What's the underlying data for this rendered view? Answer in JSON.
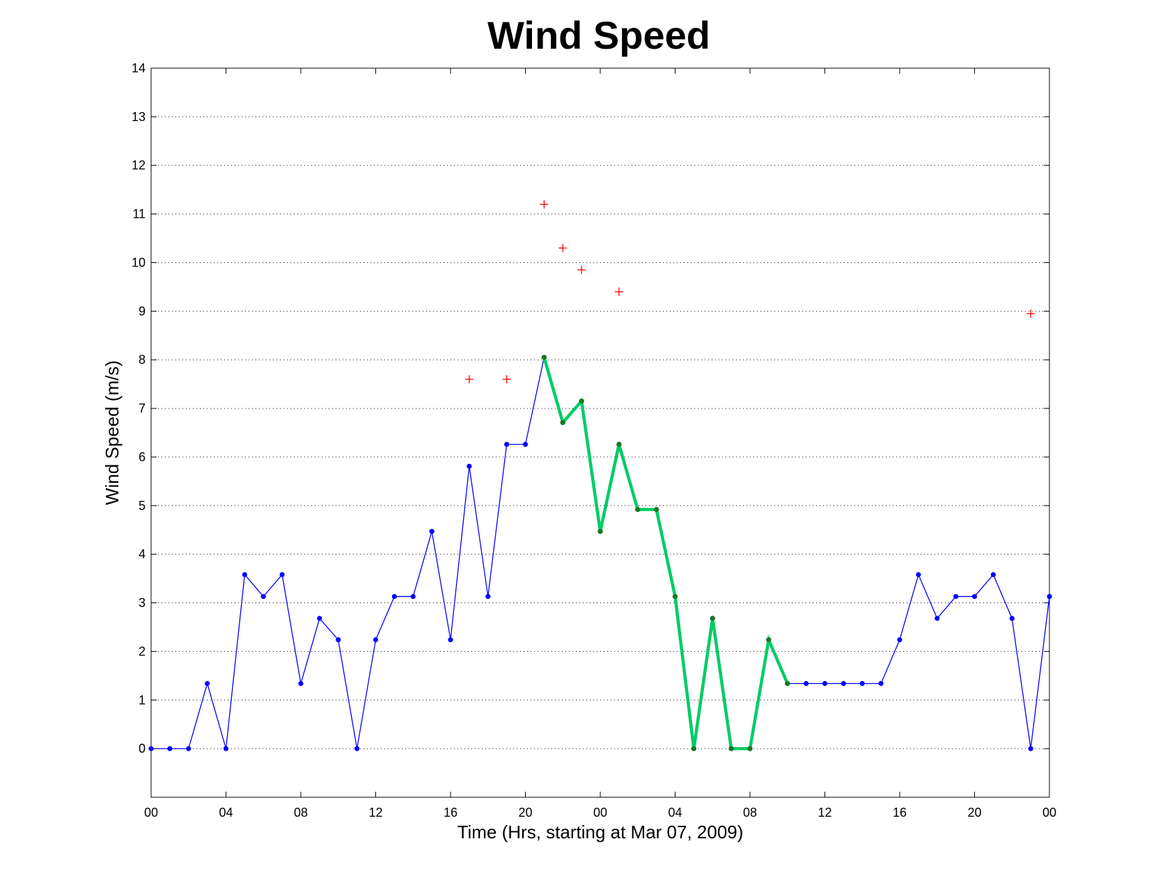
{
  "chart_data": {
    "type": "line",
    "title": "Wind Speed",
    "xlabel": "Time (Hrs, starting at Mar 07, 2009)",
    "ylabel": "Wind Speed (m/s)",
    "xlim": [
      0,
      48
    ],
    "ylim": [
      -1,
      14
    ],
    "x_ticks": [
      0,
      4,
      8,
      12,
      16,
      20,
      24,
      28,
      32,
      36,
      40,
      44,
      48
    ],
    "x_tick_labels": [
      "00",
      "04",
      "08",
      "12",
      "16",
      "20",
      "00",
      "04",
      "08",
      "12",
      "16",
      "20",
      "00"
    ],
    "y_ticks": [
      0,
      1,
      2,
      3,
      4,
      5,
      6,
      7,
      8,
      9,
      10,
      11,
      12,
      13,
      14
    ],
    "y_tick_labels": [
      "0",
      "1",
      "2",
      "3",
      "4",
      "5",
      "6",
      "7",
      "8",
      "9",
      "10",
      "11",
      "12",
      "13",
      "14"
    ],
    "grid": "horizontal dotted",
    "series": [
      {
        "style": "line-dots",
        "color": "#0000ff",
        "x": [
          0,
          1,
          2,
          3,
          4,
          5,
          6,
          7,
          8,
          9,
          10,
          11,
          12,
          13,
          14,
          15,
          16,
          17,
          18,
          19,
          20,
          21,
          22,
          23,
          24,
          25,
          26,
          27,
          28,
          29,
          30,
          31,
          32,
          33,
          34,
          35,
          36,
          37,
          38,
          39,
          40,
          41,
          42,
          43,
          44,
          45,
          46,
          47,
          48
        ],
        "y": [
          0,
          0,
          0,
          1.34,
          0,
          3.58,
          3.13,
          3.58,
          1.34,
          2.68,
          2.24,
          0,
          2.24,
          3.13,
          3.13,
          4.47,
          2.24,
          5.81,
          3.13,
          6.26,
          6.26,
          8.05,
          6.71,
          7.15,
          4.47,
          6.26,
          4.92,
          4.92,
          3.13,
          0,
          2.68,
          0,
          0,
          2.24,
          1.34,
          1.34,
          1.34,
          1.34,
          1.34,
          1.34,
          2.24,
          3.58,
          2.68,
          3.13,
          3.13,
          3.58,
          2.68,
          0,
          3.13
        ]
      },
      {
        "style": "thick-line-dots",
        "color": "#00cc66",
        "x": [
          21,
          22,
          23,
          24,
          25,
          26,
          27,
          28,
          29,
          30,
          31,
          32,
          33,
          34
        ],
        "y": [
          8.05,
          6.71,
          7.15,
          4.47,
          6.26,
          4.92,
          4.92,
          3.13,
          0,
          2.68,
          0,
          0,
          2.24,
          1.34
        ]
      },
      {
        "style": "plus-markers",
        "color": "#ff0000",
        "x": [
          17,
          19,
          21,
          22,
          23,
          25,
          47
        ],
        "y": [
          7.6,
          7.6,
          11.2,
          10.3,
          9.85,
          9.4,
          8.95
        ]
      }
    ]
  }
}
